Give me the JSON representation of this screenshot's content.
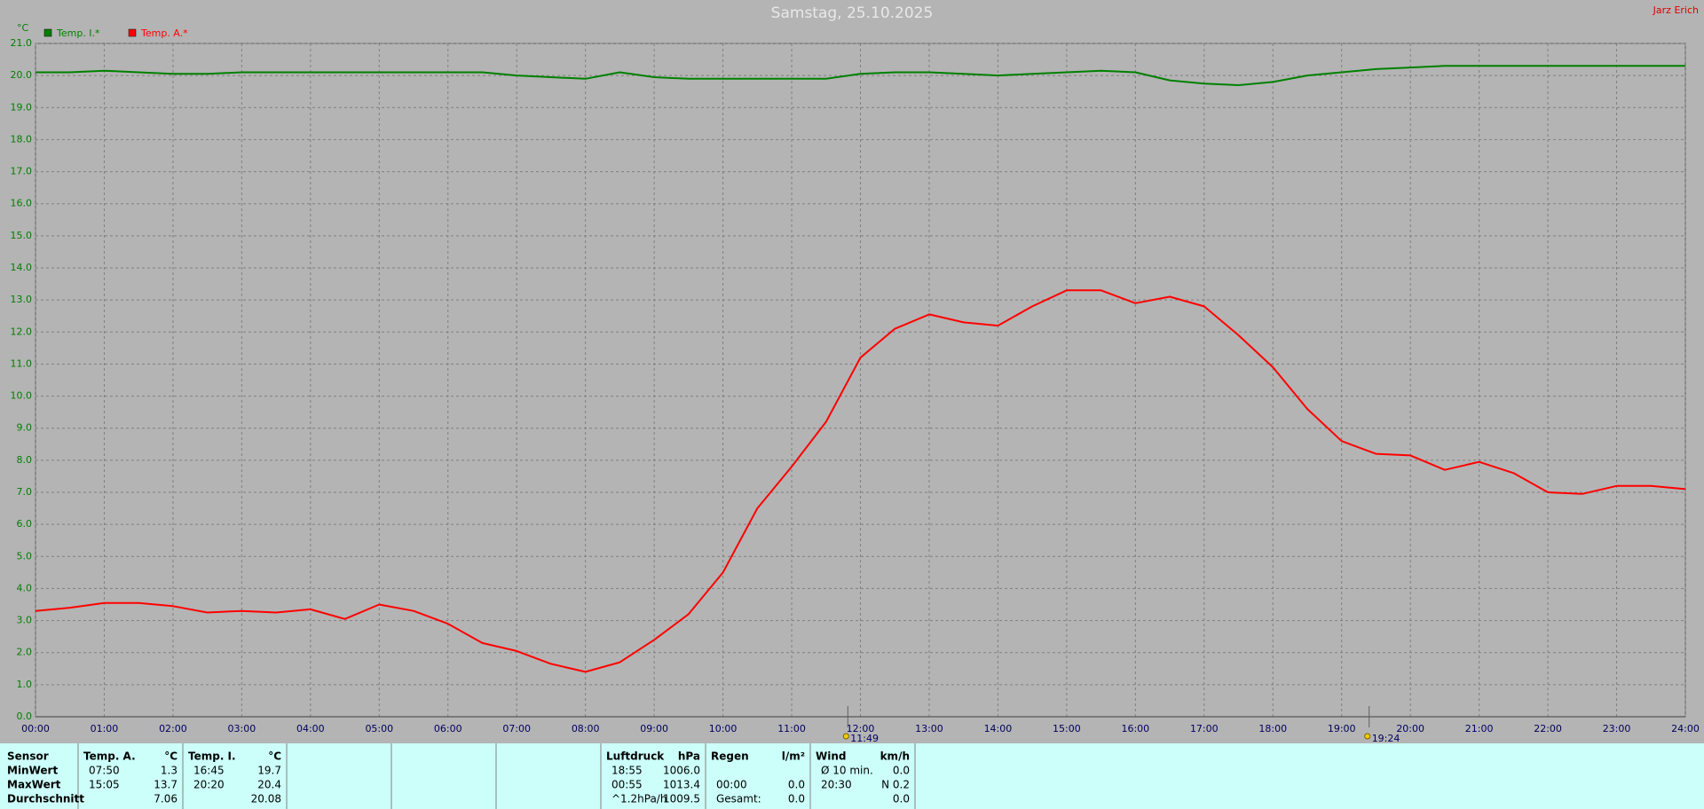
{
  "chart_data": {
    "type": "line",
    "title": "Samstag, 25.10.2025",
    "author": "Jarz Erich",
    "y_label": "°C",
    "x": [
      0,
      0.5,
      1,
      1.5,
      2,
      2.5,
      3,
      3.5,
      4,
      4.5,
      5,
      5.5,
      6,
      6.5,
      7,
      7.5,
      8,
      8.5,
      9,
      9.5,
      10,
      10.5,
      11,
      11.5,
      12,
      12.5,
      13,
      13.5,
      14,
      14.5,
      15,
      15.5,
      16,
      16.5,
      17,
      17.5,
      18,
      18.5,
      19,
      19.5,
      20,
      20.5,
      21,
      21.5,
      22,
      22.5,
      23,
      23.5,
      24
    ],
    "series": [
      {
        "name": "Temp. I.*",
        "color": "#008000",
        "values": [
          20.1,
          20.1,
          20.15,
          20.1,
          20.05,
          20.05,
          20.1,
          20.1,
          20.1,
          20.1,
          20.1,
          20.1,
          20.1,
          20.1,
          20.0,
          19.95,
          19.9,
          20.1,
          19.95,
          19.9,
          19.9,
          19.9,
          19.9,
          19.9,
          20.05,
          20.1,
          20.1,
          20.05,
          20.0,
          20.05,
          20.1,
          20.15,
          20.1,
          19.85,
          19.75,
          19.7,
          19.8,
          20.0,
          20.1,
          20.2,
          20.25,
          20.3,
          20.3,
          20.3,
          20.3,
          20.3,
          20.3,
          20.3,
          20.3
        ]
      },
      {
        "name": "Temp. A.*",
        "color": "#ff0000",
        "values": [
          3.3,
          3.4,
          3.55,
          3.55,
          3.45,
          3.25,
          3.3,
          3.25,
          3.35,
          3.05,
          3.5,
          3.3,
          2.9,
          2.3,
          2.05,
          1.65,
          1.4,
          1.7,
          2.4,
          3.2,
          4.5,
          6.5,
          7.8,
          9.2,
          11.2,
          12.1,
          12.55,
          12.3,
          12.2,
          12.8,
          13.3,
          13.3,
          12.9,
          13.1,
          12.8,
          11.9,
          10.9,
          9.6,
          8.6,
          8.2,
          8.15,
          7.7,
          7.95,
          7.6,
          7.0,
          6.95,
          7.2,
          7.2,
          7.1
        ]
      }
    ],
    "xlim": [
      0,
      24
    ],
    "xticks": [
      {
        "value": 0,
        "label": "00:00"
      },
      {
        "value": 1,
        "label": "01:00"
      },
      {
        "value": 2,
        "label": "02:00"
      },
      {
        "value": 3,
        "label": "03:00"
      },
      {
        "value": 4,
        "label": "04:00"
      },
      {
        "value": 5,
        "label": "05:00"
      },
      {
        "value": 6,
        "label": "06:00"
      },
      {
        "value": 7,
        "label": "07:00"
      },
      {
        "value": 8,
        "label": "08:00"
      },
      {
        "value": 9,
        "label": "09:00"
      },
      {
        "value": 10,
        "label": "10:00"
      },
      {
        "value": 11,
        "label": "11:00"
      },
      {
        "value": 12,
        "label": "12:00"
      },
      {
        "value": 13,
        "label": "13:00"
      },
      {
        "value": 14,
        "label": "14:00"
      },
      {
        "value": 15,
        "label": "15:00"
      },
      {
        "value": 16,
        "label": "16:00"
      },
      {
        "value": 17,
        "label": "17:00"
      },
      {
        "value": 18,
        "label": "18:00"
      },
      {
        "value": 19,
        "label": "19:00"
      },
      {
        "value": 20,
        "label": "20:00"
      },
      {
        "value": 21,
        "label": "21:00"
      },
      {
        "value": 22,
        "label": "22:00"
      },
      {
        "value": 23,
        "label": "23:00"
      },
      {
        "value": 24,
        "label": "24:00"
      }
    ],
    "ylim": [
      0,
      21
    ],
    "yticks": [
      {
        "value": 0,
        "label": "0.0"
      },
      {
        "value": 1,
        "label": "1.0"
      },
      {
        "value": 2,
        "label": "2.0"
      },
      {
        "value": 3,
        "label": "3.0"
      },
      {
        "value": 4,
        "label": "4.0"
      },
      {
        "value": 5,
        "label": "5.0"
      },
      {
        "value": 6,
        "label": "6.0"
      },
      {
        "value": 7,
        "label": "7.0"
      },
      {
        "value": 8,
        "label": "8.0"
      },
      {
        "value": 9,
        "label": "9.0"
      },
      {
        "value": 10,
        "label": "10.0"
      },
      {
        "value": 11,
        "label": "11.0"
      },
      {
        "value": 12,
        "label": "12.0"
      },
      {
        "value": 13,
        "label": "13.0"
      },
      {
        "value": 14,
        "label": "14.0"
      },
      {
        "value": 15,
        "label": "15.0"
      },
      {
        "value": 16,
        "label": "16.0"
      },
      {
        "value": 17,
        "label": "17.0"
      },
      {
        "value": 18,
        "label": "18.0"
      },
      {
        "value": 19,
        "label": "19.0"
      },
      {
        "value": 20,
        "label": "20.0"
      },
      {
        "value": 21,
        "label": "21.0"
      }
    ],
    "grid": true,
    "legend": "top-left",
    "annotations": [
      {
        "x": 11.8167,
        "label": "11:49"
      },
      {
        "x": 19.4,
        "label": "19:24"
      }
    ]
  },
  "summary": {
    "row_labels": [
      "Sensor",
      "MinWert",
      "MaxWert",
      "Durchschnitt"
    ],
    "blocks": [
      {
        "name": "Temp. A.",
        "unit": "°C",
        "col": 1,
        "rows": [
          [
            "07:50",
            "1.3"
          ],
          [
            "15:05",
            "13.7"
          ],
          [
            null,
            "7.06"
          ]
        ]
      },
      {
        "name": "Temp. I.",
        "unit": "°C",
        "col": 2,
        "rows": [
          [
            "16:45",
            "19.7"
          ],
          [
            "20:20",
            "20.4"
          ],
          [
            null,
            "20.08"
          ]
        ]
      },
      {
        "name": "Luftdruck",
        "unit": "hPa",
        "col": 6,
        "rows": [
          [
            "18:55",
            "1006.0"
          ],
          [
            "00:55",
            "1013.4"
          ],
          [
            "^1.2hPa/h",
            "1009.5"
          ]
        ]
      },
      {
        "name": "Regen",
        "unit": "l/m²",
        "col": 7,
        "rows": [
          [
            null,
            null
          ],
          [
            "00:00",
            "0.0"
          ],
          [
            "Gesamt:",
            "0.0"
          ]
        ]
      },
      {
        "name": "Wind",
        "unit": "km/h",
        "col": 8,
        "rows": [
          [
            "Ø 10 min.",
            "0.0"
          ],
          [
            "20:30",
            "N 0.2"
          ],
          [
            null,
            "0.0"
          ]
        ]
      }
    ]
  }
}
